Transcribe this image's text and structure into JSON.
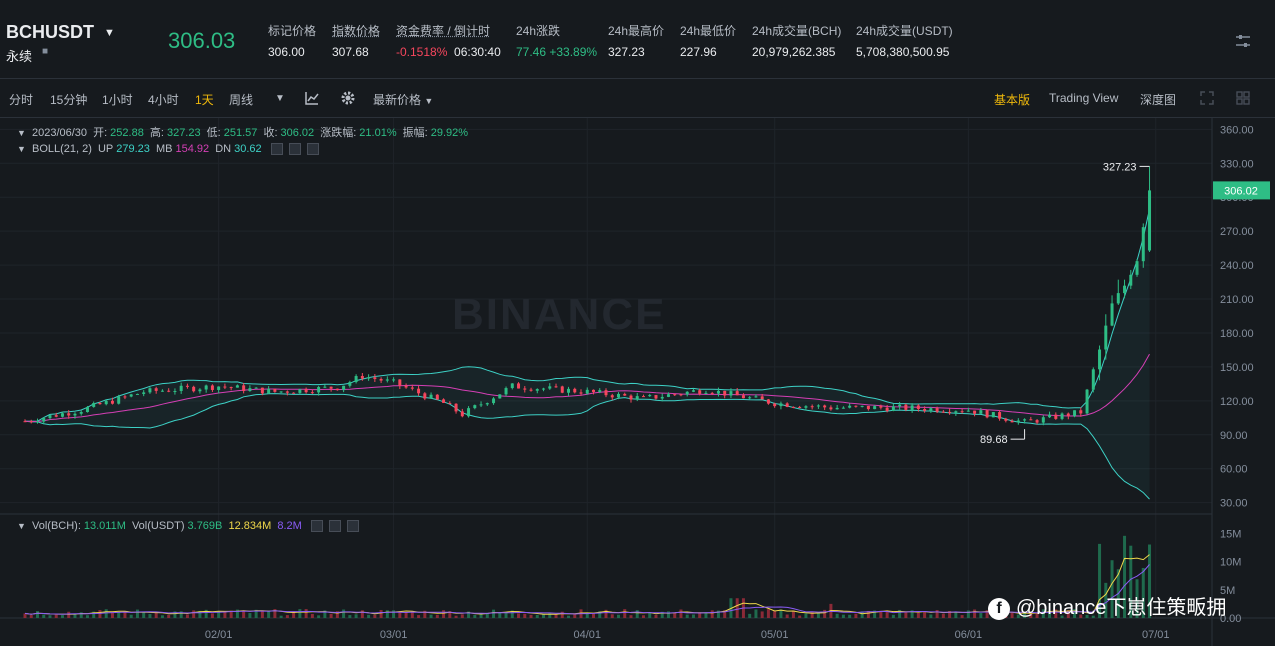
{
  "header": {
    "symbol": "BCHUSDT",
    "subtitle": "永续",
    "last_price": "306.03",
    "stats": [
      {
        "label": "标记价格",
        "value": "306.00"
      },
      {
        "label": "指数价格",
        "value": "307.68"
      },
      {
        "label": "资金费率 / 倒计时",
        "value_a": "-0.1518%",
        "value_b": "06:30:40"
      },
      {
        "label": "24h涨跌",
        "value": "77.46 +33.89%"
      },
      {
        "label": "24h最高价",
        "value": "327.23"
      },
      {
        "label": "24h最低价",
        "value": "227.96"
      },
      {
        "label": "24h成交量(BCH)",
        "value": "20,979,262.385"
      },
      {
        "label": "24h成交量(USDT)",
        "value": "5,708,380,500.95"
      }
    ]
  },
  "toolbar": {
    "intervals": [
      "分时",
      "15分钟",
      "1小时",
      "4小时",
      "1天",
      "周线"
    ],
    "active_interval": "1天",
    "price_type": "最新价格",
    "views": [
      "基本版",
      "Trading View",
      "深度图"
    ],
    "active_view": "基本版"
  },
  "ohlc_info": {
    "date": "2023/06/30",
    "open_label": "开:",
    "open": "252.88",
    "high_label": "高:",
    "high": "327.23",
    "low_label": "低:",
    "low": "251.57",
    "close_label": "收:",
    "close": "306.02",
    "change_label": "涨跌幅:",
    "change": "21.01%",
    "amp_label": "振幅:",
    "amp": "29.92%"
  },
  "boll_info": {
    "name": "BOLL(21, 2)",
    "up_label": "UP",
    "up": "279.23",
    "mb_label": "MB",
    "mb": "154.92",
    "dn_label": "DN",
    "dn": "30.62"
  },
  "vol_info": {
    "bch_label": "Vol(BCH):",
    "bch": "13.011M",
    "usdt_label": "Vol(USDT)",
    "usdt": "3.769B",
    "ma1": "12.834M",
    "ma2": "8.2M"
  },
  "watermark": "BINANCE",
  "footer_tag": "@binance下崽住策畈拥",
  "colors": {
    "up": "#2ebd85",
    "down": "#f6465d",
    "boll_band": "#3dd1c6",
    "boll_mid": "#d43fb5",
    "accent": "#f0b90b"
  },
  "chart_data": {
    "type": "candlestick",
    "price_axis": {
      "ylim": [
        20,
        370
      ],
      "ticks": [
        360,
        330,
        300,
        270,
        240,
        210,
        180,
        150,
        120,
        90,
        60,
        30
      ],
      "tick_labels": [
        "360.00",
        "330.00",
        "300.00",
        "270.00",
        "240.00",
        "210.00",
        "180.00",
        "150.00",
        "120.00",
        "90.00",
        "60.00",
        "30.00"
      ]
    },
    "volume_axis": {
      "ylim": [
        0,
        17000000
      ],
      "tick_labels": [
        "15M",
        "10M",
        "5M",
        "0.00"
      ],
      "ticks": [
        15000000,
        10000000,
        5000000,
        0
      ]
    },
    "x_labels": [
      "02/01",
      "03/01",
      "04/01",
      "05/01",
      "06/01",
      "07/01"
    ],
    "current_price_tag": "306.02",
    "max_annotation": "327.23",
    "min_annotation": "89.68",
    "keypoints": [
      {
        "date": "2023-01-01",
        "close": 102
      },
      {
        "date": "2023-01-10",
        "close": 112
      },
      {
        "date": "2023-01-20",
        "close": 128
      },
      {
        "date": "2023-02-01",
        "close": 133
      },
      {
        "date": "2023-02-10",
        "close": 128
      },
      {
        "date": "2023-02-20",
        "close": 132
      },
      {
        "date": "2023-02-24",
        "close": 142
      },
      {
        "date": "2023-03-01",
        "close": 136
      },
      {
        "date": "2023-03-09",
        "close": 118
      },
      {
        "date": "2023-03-12",
        "close": 108
      },
      {
        "date": "2023-03-20",
        "close": 133
      },
      {
        "date": "2023-04-01",
        "close": 128
      },
      {
        "date": "2023-04-10",
        "close": 122
      },
      {
        "date": "2023-04-20",
        "close": 130
      },
      {
        "date": "2023-05-01",
        "close": 118
      },
      {
        "date": "2023-05-10",
        "close": 114
      },
      {
        "date": "2023-05-20",
        "close": 114
      },
      {
        "date": "2023-06-01",
        "close": 112
      },
      {
        "date": "2023-06-10",
        "close": 101
      },
      {
        "date": "2023-06-19",
        "close": 110
      },
      {
        "date": "2023-06-22",
        "close": 165
      },
      {
        "date": "2023-06-24",
        "close": 205
      },
      {
        "date": "2023-06-26",
        "close": 222
      },
      {
        "date": "2023-06-28",
        "close": 245
      },
      {
        "date": "2023-06-30",
        "open": 252.88,
        "high": 327.23,
        "low": 251.57,
        "close": 306.02
      }
    ]
  }
}
